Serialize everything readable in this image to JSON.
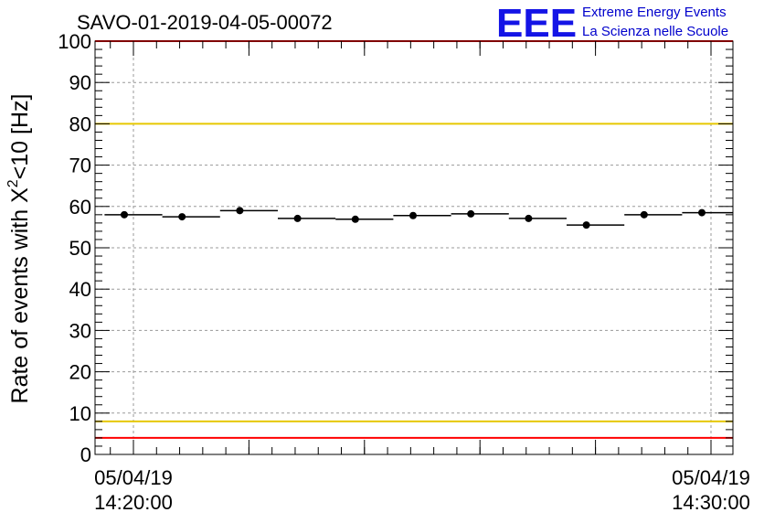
{
  "chart_data": {
    "type": "scatter",
    "title": "SAVO-01-2019-04-05-00072",
    "ylabel_main": "Rate of events with X",
    "ylabel_sup": "2",
    "ylabel_tail": "<10 [Hz]",
    "ylim": [
      0,
      100
    ],
    "y_ticks": [
      "0",
      "10",
      "20",
      "30",
      "40",
      "50",
      "60",
      "70",
      "80",
      "90",
      "100"
    ],
    "xlim_minutes": [
      0,
      10.5
    ],
    "x_tick_labels": [
      {
        "date": "05/04/19",
        "time": "14:20:00"
      },
      {
        "date": "05/04/19",
        "time": "14:30:00"
      }
    ],
    "grid": true,
    "bin_width_minutes": 1,
    "x": [
      0.0,
      1.0,
      2.0,
      3.0,
      4.0,
      5.0,
      6.0,
      7.0,
      8.0,
      9.0,
      10.0
    ],
    "values": [
      58.0,
      57.5,
      59.0,
      57.1,
      56.9,
      57.8,
      58.2,
      57.1,
      55.5,
      58.0,
      58.5
    ],
    "reference_lines": [
      {
        "y": 100,
        "color": "#ff0000"
      },
      {
        "y": 80,
        "color": "#e6c800"
      },
      {
        "y": 8,
        "color": "#e6c800"
      },
      {
        "y": 4,
        "color": "#ff0000"
      }
    ]
  },
  "logo": {
    "big": "EEE",
    "line1": "Extreme Energy Events",
    "line2": "La Scienza nelle Scuole"
  }
}
